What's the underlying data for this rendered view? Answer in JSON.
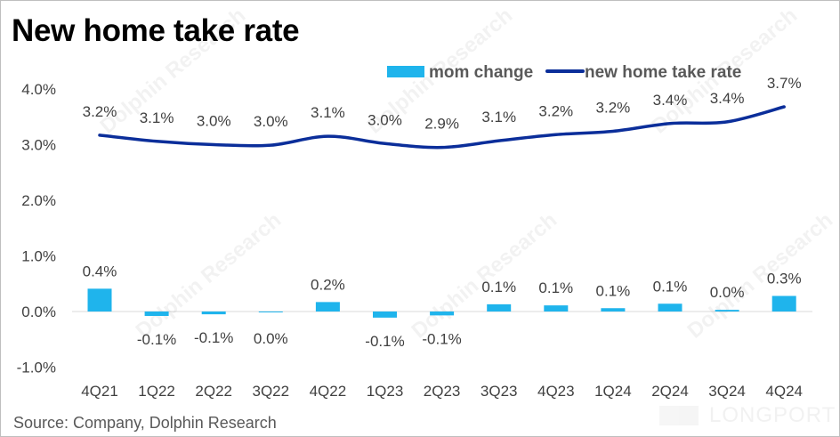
{
  "chart_data": {
    "type": "bar+line",
    "title": "New home take rate",
    "source": "Source: Company, Dolphin Research",
    "watermark": "Dolphin Research",
    "logo": "LONGPORT",
    "categories": [
      "4Q21",
      "1Q22",
      "2Q22",
      "3Q22",
      "4Q22",
      "1Q23",
      "2Q23",
      "3Q23",
      "4Q23",
      "1Q24",
      "2Q24",
      "3Q24",
      "4Q24"
    ],
    "ylim": [
      -1.0,
      4.0
    ],
    "yticks": [
      "-1.0%",
      "0.0%",
      "1.0%",
      "2.0%",
      "3.0%",
      "4.0%"
    ],
    "ytick_values": [
      -1,
      0,
      1,
      2,
      3,
      4
    ],
    "legend_position": "top-right",
    "series": [
      {
        "name": "mom change",
        "type": "bar",
        "color": "#1fb4ec",
        "values": [
          0.41,
          -0.08,
          -0.05,
          0.0,
          0.17,
          -0.11,
          -0.07,
          0.13,
          0.11,
          0.06,
          0.14,
          0.03,
          0.28
        ],
        "labels": [
          "0.4%",
          "-0.1%",
          "-0.1%",
          "0.0%",
          "0.2%",
          "-0.1%",
          "-0.1%",
          "0.1%",
          "0.1%",
          "0.1%",
          "0.1%",
          "0.0%",
          "0.3%"
        ]
      },
      {
        "name": "new home take rate",
        "type": "line",
        "color": "#0b2e9a",
        "values": [
          3.17,
          3.06,
          3.0,
          2.99,
          3.15,
          3.02,
          2.95,
          3.07,
          3.18,
          3.24,
          3.38,
          3.41,
          3.68
        ],
        "labels": [
          "3.2%",
          "3.1%",
          "3.0%",
          "3.0%",
          "3.1%",
          "3.0%",
          "2.9%",
          "3.1%",
          "3.2%",
          "3.2%",
          "3.4%",
          "3.4%",
          "3.7%"
        ]
      }
    ]
  }
}
